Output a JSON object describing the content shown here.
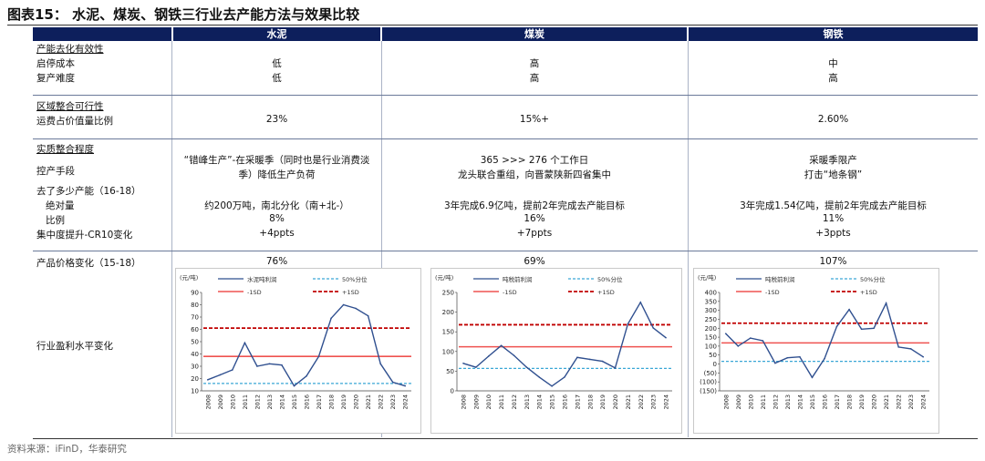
{
  "title": "图表15：  水泥、煤炭、钢铁三行业去产能方法与效果比较",
  "header": {
    "cement": "水泥",
    "coal": "煤炭",
    "steel": "钢铁"
  },
  "rows": {
    "capacity_effect_label": "产能去化有效性",
    "restart_cost": {
      "label": "启停成本",
      "cement": "低",
      "coal": "高",
      "steel": "中"
    },
    "resume_difficulty": {
      "label": "复产难度",
      "cement": "低",
      "coal": "高",
      "steel": "高"
    },
    "regional_label": "区域整合可行性",
    "freight_ratio": {
      "label": "运费占价值量比例",
      "cement": "23%",
      "coal": "15%+",
      "steel": "2.60%"
    },
    "substance_label": "实质整合程度",
    "control_means": {
      "label": "控产手段",
      "cement_1": "“错峰生产”-在采暖季（同时也是行业消费淡",
      "cement_2": "季）降低生产负荷",
      "coal_1": "365 >>> 276 个工作日",
      "coal_2": "龙头联合重组，向晋蒙陕新四省集中",
      "steel_1": "采暖季限产",
      "steel_2": "打击“地条钢”"
    },
    "reduce_label": "去了多少产能（16-18）",
    "absolute_label": "绝对量",
    "ratio_label": "比例",
    "absolute": {
      "cement": "约200万吨，南北分化（南+北-）",
      "coal": "3年完成6.9亿吨，提前2年完成去产能目标",
      "steel": "3年完成1.54亿吨，提前2年完成去产能目标"
    },
    "ratio": {
      "cement": "8%",
      "coal": "16%",
      "steel": "11%"
    },
    "cr10": {
      "label": "集中度提升-CR10变化",
      "cement": "+4ppts",
      "coal": "+7ppts",
      "steel": "+3ppts"
    },
    "price_change": {
      "label": "产品价格变化（15-18）",
      "cement": "76%",
      "coal": "69%",
      "steel": "107%"
    },
    "profit_label": "行业盈利水平变化"
  },
  "source": "资料来源：iFinD，华泰研究",
  "colors": {
    "header_bg": "#0d1f5c",
    "profit_line": "#2f4f8f",
    "pct50": "#3aa7d6",
    "minus1sd": "#ef5350",
    "plus1sd": "#c00000"
  },
  "chart_data": [
    {
      "type": "line",
      "name": "cement",
      "unit_label": "(元/吨)",
      "legend": [
        "水泥吨利润",
        "50%分位",
        "-1SD",
        "+1SD"
      ],
      "x": [
        "2008",
        "2009",
        "2010",
        "2011",
        "2012",
        "2013",
        "2014",
        "2015",
        "2016",
        "2017",
        "2018",
        "2019",
        "2020",
        "2021",
        "2022",
        "2023",
        "2024"
      ],
      "values": [
        19,
        23,
        27,
        49,
        30,
        32,
        31,
        14,
        22,
        38,
        69,
        80,
        77,
        71,
        32,
        17,
        14
      ],
      "pct50": 16,
      "minus1sd": 38,
      "plus1sd": 61,
      "ylim": [
        10,
        90
      ],
      "yticks": [
        10,
        20,
        30,
        40,
        50,
        60,
        70,
        80,
        90
      ]
    },
    {
      "type": "line",
      "name": "coal",
      "unit_label": "(元/吨)",
      "legend": [
        "吨税前利润",
        "50%分位",
        "-1SD",
        "+1SD"
      ],
      "x": [
        "2008",
        "2009",
        "2010",
        "2011",
        "2012",
        "2013",
        "2014",
        "2015",
        "2016",
        "2017",
        "2018",
        "2019",
        "2020",
        "2021",
        "2022",
        "2023",
        "2024"
      ],
      "values": [
        70,
        60,
        88,
        115,
        90,
        60,
        35,
        12,
        35,
        85,
        80,
        75,
        58,
        170,
        225,
        160,
        135
      ],
      "pct50": 57,
      "minus1sd": 112,
      "plus1sd": 168,
      "ylim": [
        0,
        250
      ],
      "yticks": [
        0,
        50,
        100,
        150,
        200,
        250
      ]
    },
    {
      "type": "line",
      "name": "steel",
      "unit_label": "(元/吨)",
      "legend": [
        "吨税前利润",
        "50%分位",
        "-1SD",
        "+1SD"
      ],
      "x": [
        "2008",
        "2009",
        "2010",
        "2011",
        "2012",
        "2013",
        "2014",
        "2015",
        "2016",
        "2017",
        "2018",
        "2019",
        "2020",
        "2021",
        "2022",
        "2023",
        "2024"
      ],
      "values": [
        170,
        100,
        145,
        130,
        5,
        35,
        40,
        -75,
        30,
        210,
        305,
        195,
        200,
        340,
        95,
        85,
        40
      ],
      "pct50": 15,
      "minus1sd": 118,
      "plus1sd": 228,
      "ylim": [
        -150,
        400
      ],
      "yticks": [
        -150,
        -100,
        -50,
        0,
        50,
        100,
        150,
        200,
        250,
        300,
        350,
        400
      ]
    }
  ]
}
